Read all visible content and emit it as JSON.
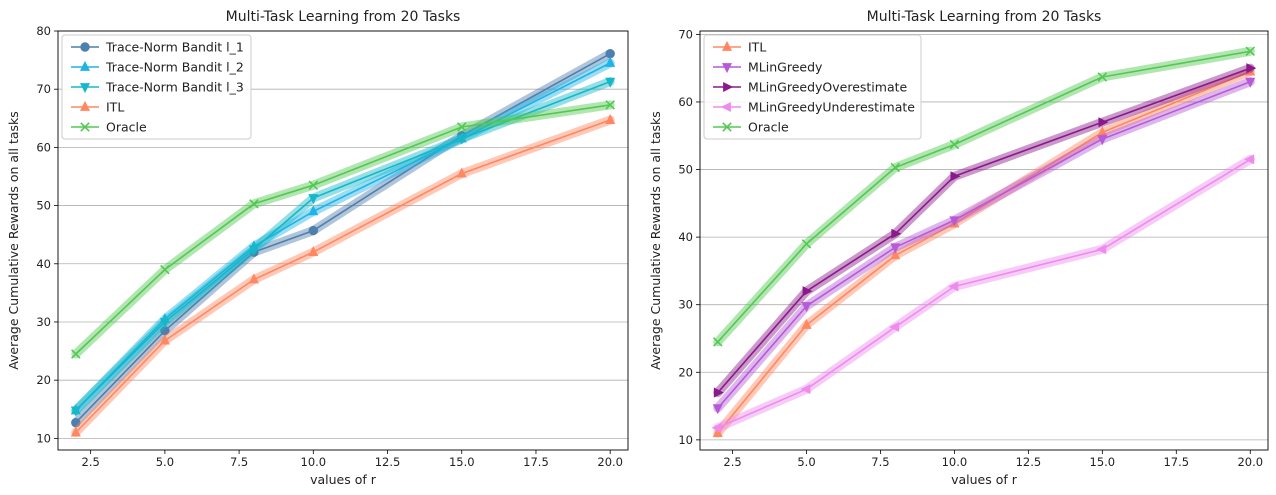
{
  "chart_data": [
    {
      "type": "line",
      "title": "Multi-Task Learning from 20 Tasks",
      "xlabel": "values of r",
      "ylabel": "Average Cumulative Rewards on all tasks",
      "xlim": [
        1.4,
        20.6
      ],
      "ylim": [
        8.0,
        80.0
      ],
      "xticks": [
        2.5,
        5.0,
        7.5,
        10.0,
        12.5,
        15.0,
        17.5,
        20.0
      ],
      "xtick_labels": [
        "2.5",
        "5.0",
        "7.5",
        "10.0",
        "12.5",
        "15.0",
        "17.5",
        "20.0"
      ],
      "yticks": [
        10,
        20,
        30,
        40,
        50,
        60,
        70,
        80
      ],
      "ytick_labels": [
        "10",
        "20",
        "30",
        "40",
        "50",
        "60",
        "70",
        "80"
      ],
      "grid": "horizontal",
      "legend": "top-left",
      "x": [
        2,
        5,
        8,
        10,
        15,
        20
      ],
      "series": [
        {
          "name": "Trace-Norm Bandit l_1",
          "values": [
            12.7,
            28.5,
            42.0,
            45.7,
            62.0,
            76.1
          ],
          "color": "#4f7fad",
          "marker": "circle"
        },
        {
          "name": "Trace-Norm Bandit l_2",
          "values": [
            14.8,
            30.5,
            43.0,
            49.0,
            61.5,
            74.5
          ],
          "color": "#1fb3e6",
          "marker": "triangle-up"
        },
        {
          "name": "Trace-Norm Bandit l_3",
          "values": [
            14.8,
            30.0,
            42.5,
            51.3,
            61.5,
            71.3
          ],
          "color": "#16b8c8",
          "marker": "triangle-down"
        },
        {
          "name": "ITL",
          "values": [
            11.0,
            26.8,
            37.3,
            42.0,
            55.5,
            64.7
          ],
          "color": "#ff8862",
          "marker": "triangle-up"
        },
        {
          "name": "Oracle",
          "values": [
            24.5,
            39.0,
            50.3,
            53.5,
            63.5,
            67.3
          ],
          "color": "#53c853",
          "marker": "x"
        }
      ]
    },
    {
      "type": "line",
      "title": "Multi-Task Learning from 20 Tasks",
      "xlabel": "values of r",
      "ylabel": "Average Cumulative Rewards on all tasks",
      "xlim": [
        1.4,
        20.6
      ],
      "ylim": [
        8.5,
        70.5
      ],
      "xticks": [
        2.5,
        5.0,
        7.5,
        10.0,
        12.5,
        15.0,
        17.5,
        20.0
      ],
      "xtick_labels": [
        "2.5",
        "5.0",
        "7.5",
        "10.0",
        "12.5",
        "15.0",
        "17.5",
        "20.0"
      ],
      "yticks": [
        10,
        20,
        30,
        40,
        50,
        60,
        70
      ],
      "ytick_labels": [
        "10",
        "20",
        "30",
        "40",
        "50",
        "60",
        "70"
      ],
      "grid": "horizontal",
      "legend": "top-left",
      "x": [
        2,
        5,
        8,
        10,
        15,
        20
      ],
      "series": [
        {
          "name": "ITL",
          "values": [
            11.0,
            27.0,
            37.3,
            42.0,
            55.5,
            64.5
          ],
          "color": "#ff8862",
          "marker": "triangle-up"
        },
        {
          "name": "MLinGreedy",
          "values": [
            14.7,
            29.8,
            38.5,
            42.5,
            54.5,
            63.0
          ],
          "color": "#b65bd6",
          "marker": "triangle-down"
        },
        {
          "name": "MLinGreedyOverestimate",
          "values": [
            17.0,
            32.0,
            40.5,
            49.0,
            57.0,
            65.0
          ],
          "color": "#8a1a8a",
          "marker": "triangle-right"
        },
        {
          "name": "MLinGreedyUnderestimate",
          "values": [
            11.8,
            17.5,
            26.7,
            32.7,
            38.2,
            51.5
          ],
          "color": "#ee8cee",
          "marker": "triangle-left"
        },
        {
          "name": "Oracle",
          "values": [
            24.5,
            39.0,
            50.3,
            53.7,
            63.7,
            67.5
          ],
          "color": "#53c853",
          "marker": "x"
        }
      ]
    }
  ]
}
